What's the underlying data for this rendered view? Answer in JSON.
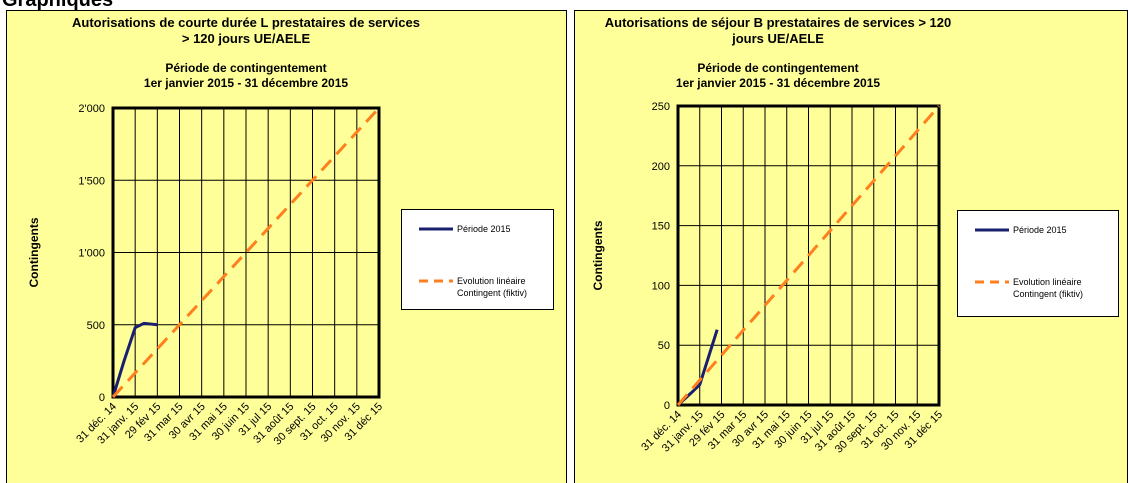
{
  "heading": "Graphiques",
  "chart_data": [
    {
      "type": "line",
      "title": [
        "Autorisations de courte durée L prestataires de services",
        "> 120 jours UE/AELE"
      ],
      "subtitle": [
        "Période de contingentement",
        "1er janvier 2015 - 31 décembre 2015"
      ],
      "y_label": "Contingents",
      "xlim": [
        0,
        12
      ],
      "xticks": [
        {
          "value": 0,
          "label": "31 déc. 14"
        },
        {
          "value": 1,
          "label": "31 janv. 15"
        },
        {
          "value": 2,
          "label": "29 fév 15"
        },
        {
          "value": 3,
          "label": "31 mar 15"
        },
        {
          "value": 4,
          "label": "30 avr 15"
        },
        {
          "value": 5,
          "label": "31 mai 15"
        },
        {
          "value": 6,
          "label": "30 juin 15"
        },
        {
          "value": 7,
          "label": "31 jul 15"
        },
        {
          "value": 8,
          "label": "31 août 15"
        },
        {
          "value": 9,
          "label": "30 sept. 15"
        },
        {
          "value": 10,
          "label": "31 oct. 15"
        },
        {
          "value": 11,
          "label": "30 nov. 15"
        },
        {
          "value": 12,
          "label": "31 déc 15"
        }
      ],
      "ylim": [
        0,
        2000
      ],
      "yticks": [
        0,
        500,
        {
          "value": 1000,
          "label": "1'000"
        },
        {
          "value": 1500,
          "label": "1'500"
        },
        {
          "value": 2000,
          "label": "2'000"
        }
      ],
      "grid": true,
      "series": [
        {
          "name": "Période 2015",
          "color": "#1a1f6e",
          "style": "solid",
          "x": [
            0,
            0.5,
            1,
            1.4,
            2
          ],
          "values": [
            0,
            250,
            480,
            510,
            500
          ]
        },
        {
          "name": "Evolution linéaire Contingent (fiktiv)",
          "color": "#ff7f1e",
          "style": "dashed",
          "x": [
            0,
            12
          ],
          "values": [
            0,
            2000
          ]
        }
      ]
    },
    {
      "type": "line",
      "title": [
        "Autorisations de séjour B prestataires de services > 120",
        "jours UE/AELE"
      ],
      "subtitle": [
        "Période de contingentement",
        "1er janvier 2015 - 31 décembre 2015"
      ],
      "y_label": "Contingents",
      "xlim": [
        0,
        12
      ],
      "xticks": [
        {
          "value": 0,
          "label": "31 déc. 14"
        },
        {
          "value": 1,
          "label": "31 janv. 15"
        },
        {
          "value": 2,
          "label": "29 fév 15"
        },
        {
          "value": 3,
          "label": "31 mar 15"
        },
        {
          "value": 4,
          "label": "30 avr 15"
        },
        {
          "value": 5,
          "label": "31 mai 15"
        },
        {
          "value": 6,
          "label": "30 juin 15"
        },
        {
          "value": 7,
          "label": "31 jul 15"
        },
        {
          "value": 8,
          "label": "31 août 15"
        },
        {
          "value": 9,
          "label": "30 sept. 15"
        },
        {
          "value": 10,
          "label": "31 oct. 15"
        },
        {
          "value": 11,
          "label": "30 nov. 15"
        },
        {
          "value": 12,
          "label": "31 déc 15"
        }
      ],
      "ylim": [
        0,
        250
      ],
      "yticks": [
        0,
        50,
        100,
        150,
        200,
        250
      ],
      "grid": true,
      "series": [
        {
          "name": "Période 2015",
          "color": "#1a1f6e",
          "style": "solid",
          "x": [
            0,
            0.6,
            1,
            1.4,
            1.8
          ],
          "values": [
            0,
            10,
            17,
            40,
            63
          ]
        },
        {
          "name": "Evolution linéaire Contingent (fiktiv)",
          "color": "#ff7f1e",
          "style": "dashed",
          "x": [
            0,
            12
          ],
          "values": [
            0,
            250
          ]
        }
      ]
    }
  ]
}
